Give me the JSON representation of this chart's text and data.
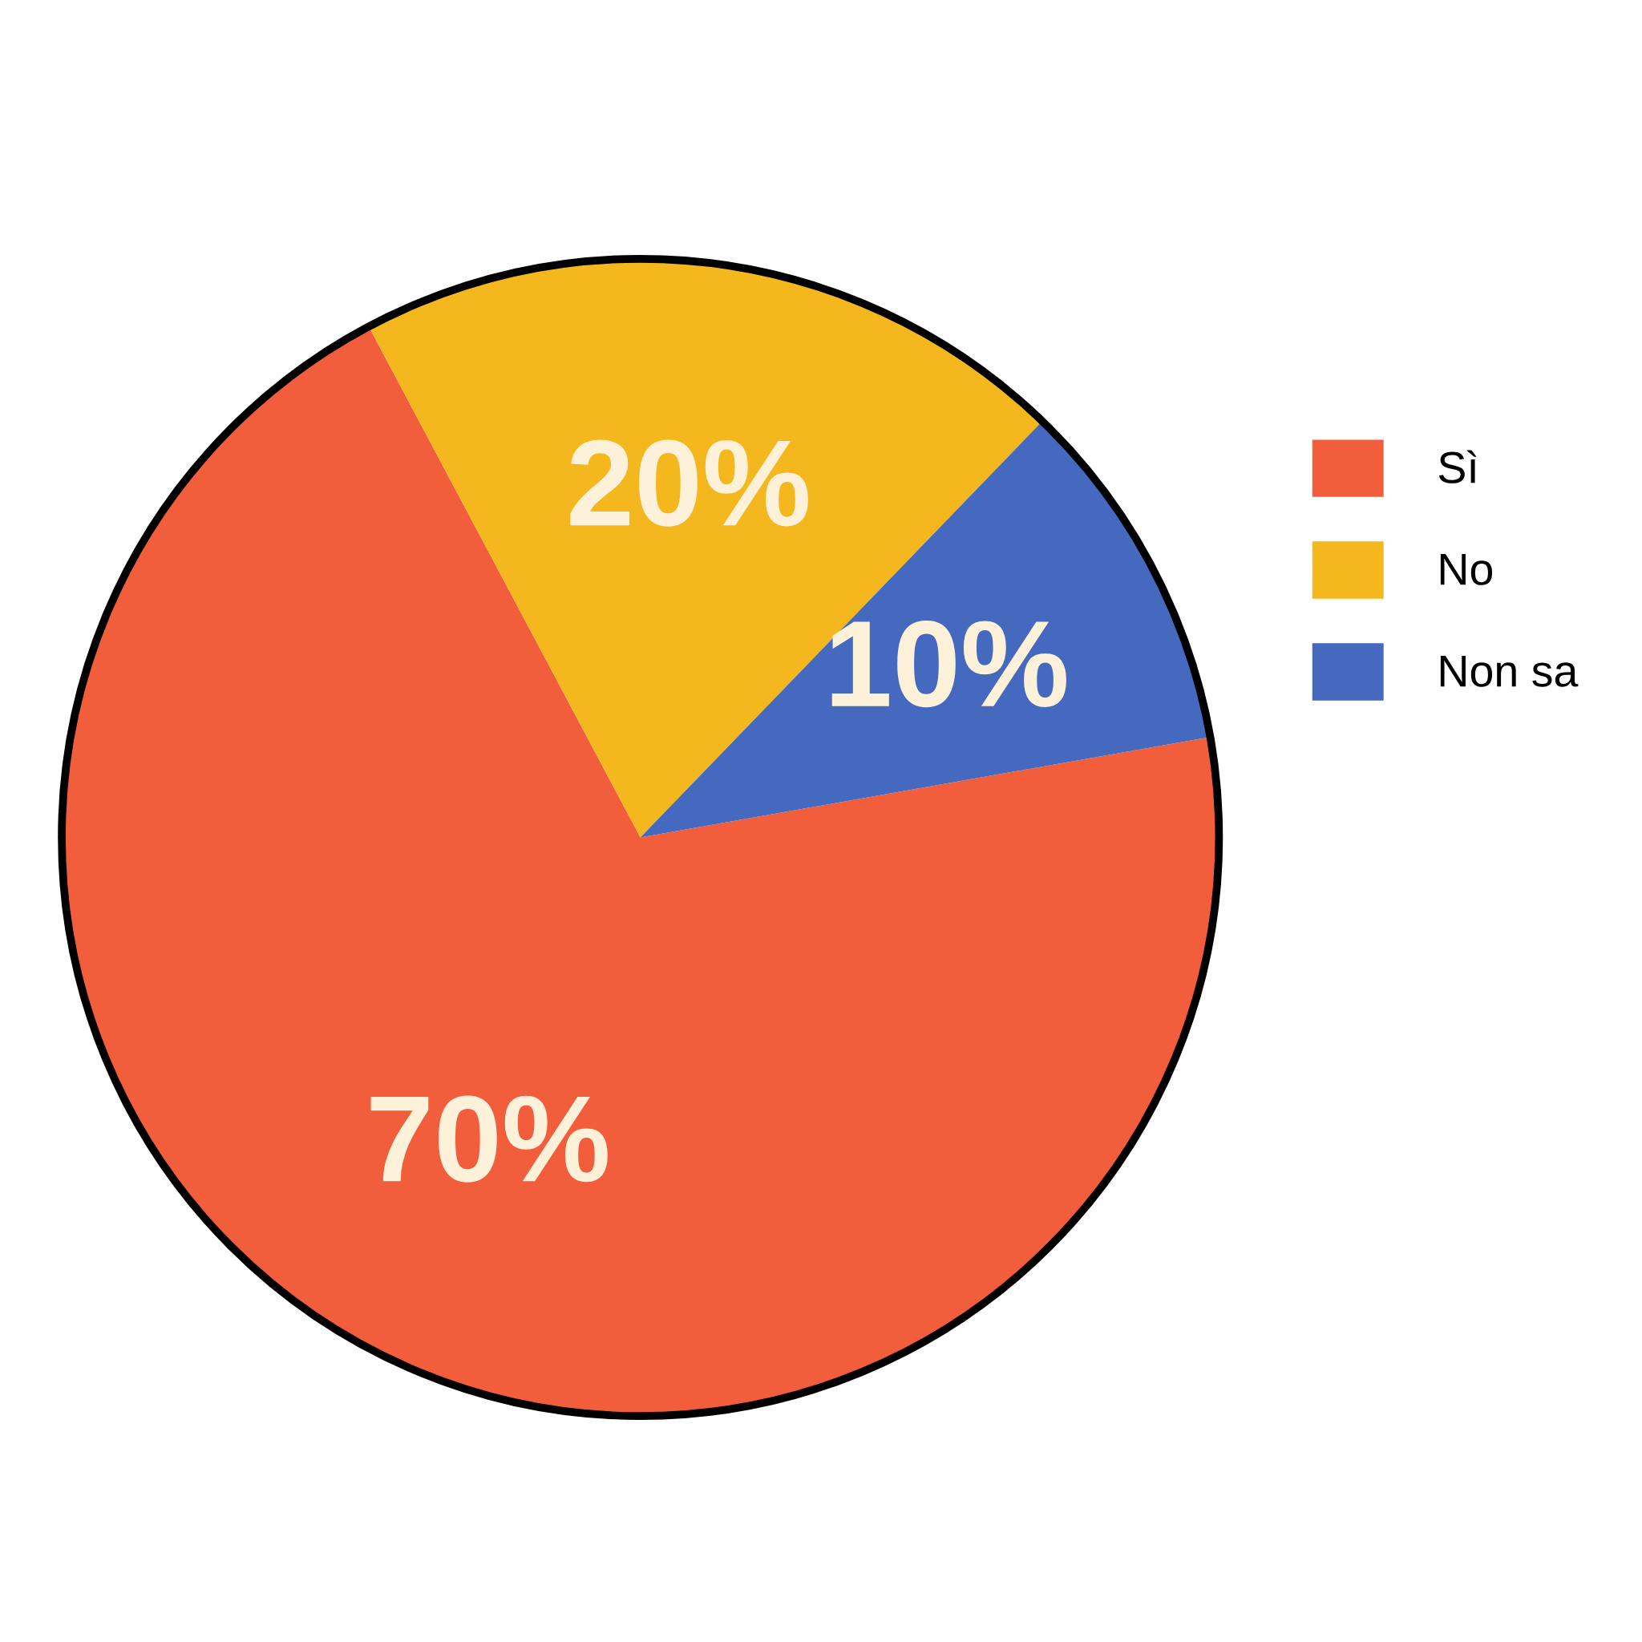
{
  "chart_data": {
    "type": "pie",
    "categories": [
      "Sì",
      "No",
      "Non sa"
    ],
    "values": [
      70,
      20,
      10
    ],
    "colors": [
      "#f25e3b",
      "#f4b71e",
      "#4469be"
    ],
    "value_labels": [
      "70%",
      "20%",
      "10%"
    ],
    "legend": "right"
  }
}
